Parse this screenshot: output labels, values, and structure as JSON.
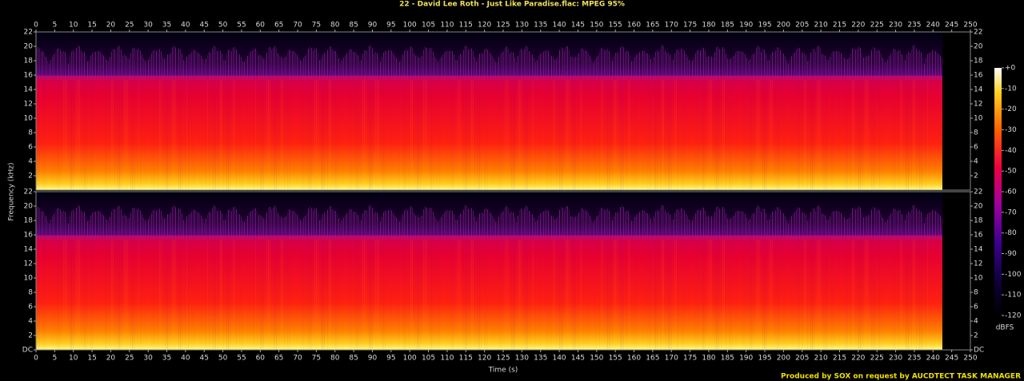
{
  "chart_data": {
    "type": "spectrogram",
    "title": "22 - David Lee Roth - Just Like Paradise.flac: MPEG 95%",
    "x_label": "Time (s)",
    "y_label": "Frequency (kHz)",
    "xlim": [
      0,
      250
    ],
    "xticks": [
      0,
      5,
      10,
      15,
      20,
      25,
      30,
      35,
      40,
      45,
      50,
      55,
      60,
      65,
      70,
      75,
      80,
      85,
      90,
      95,
      100,
      105,
      110,
      115,
      120,
      125,
      130,
      135,
      140,
      145,
      150,
      155,
      160,
      165,
      170,
      175,
      180,
      185,
      190,
      195,
      200,
      205,
      210,
      215,
      220,
      225,
      230,
      235,
      240,
      245,
      250
    ],
    "ylim": [
      0,
      22
    ],
    "yticks": [
      {
        "value": 0,
        "label": "DC"
      },
      2,
      4,
      6,
      8,
      10,
      12,
      14,
      16,
      18,
      20,
      22
    ],
    "colorbar": {
      "label": "dBFS",
      "lim": [
        -120,
        0
      ],
      "ticks": [
        {
          "value": 0,
          "label": "+0"
        },
        -10,
        -20,
        -30,
        -40,
        -50,
        -60,
        -70,
        -80,
        -90,
        -100,
        -110,
        -120
      ]
    },
    "footer": "Produced by SOX on request by AUCDTECT TASK MANAGER"
  }
}
